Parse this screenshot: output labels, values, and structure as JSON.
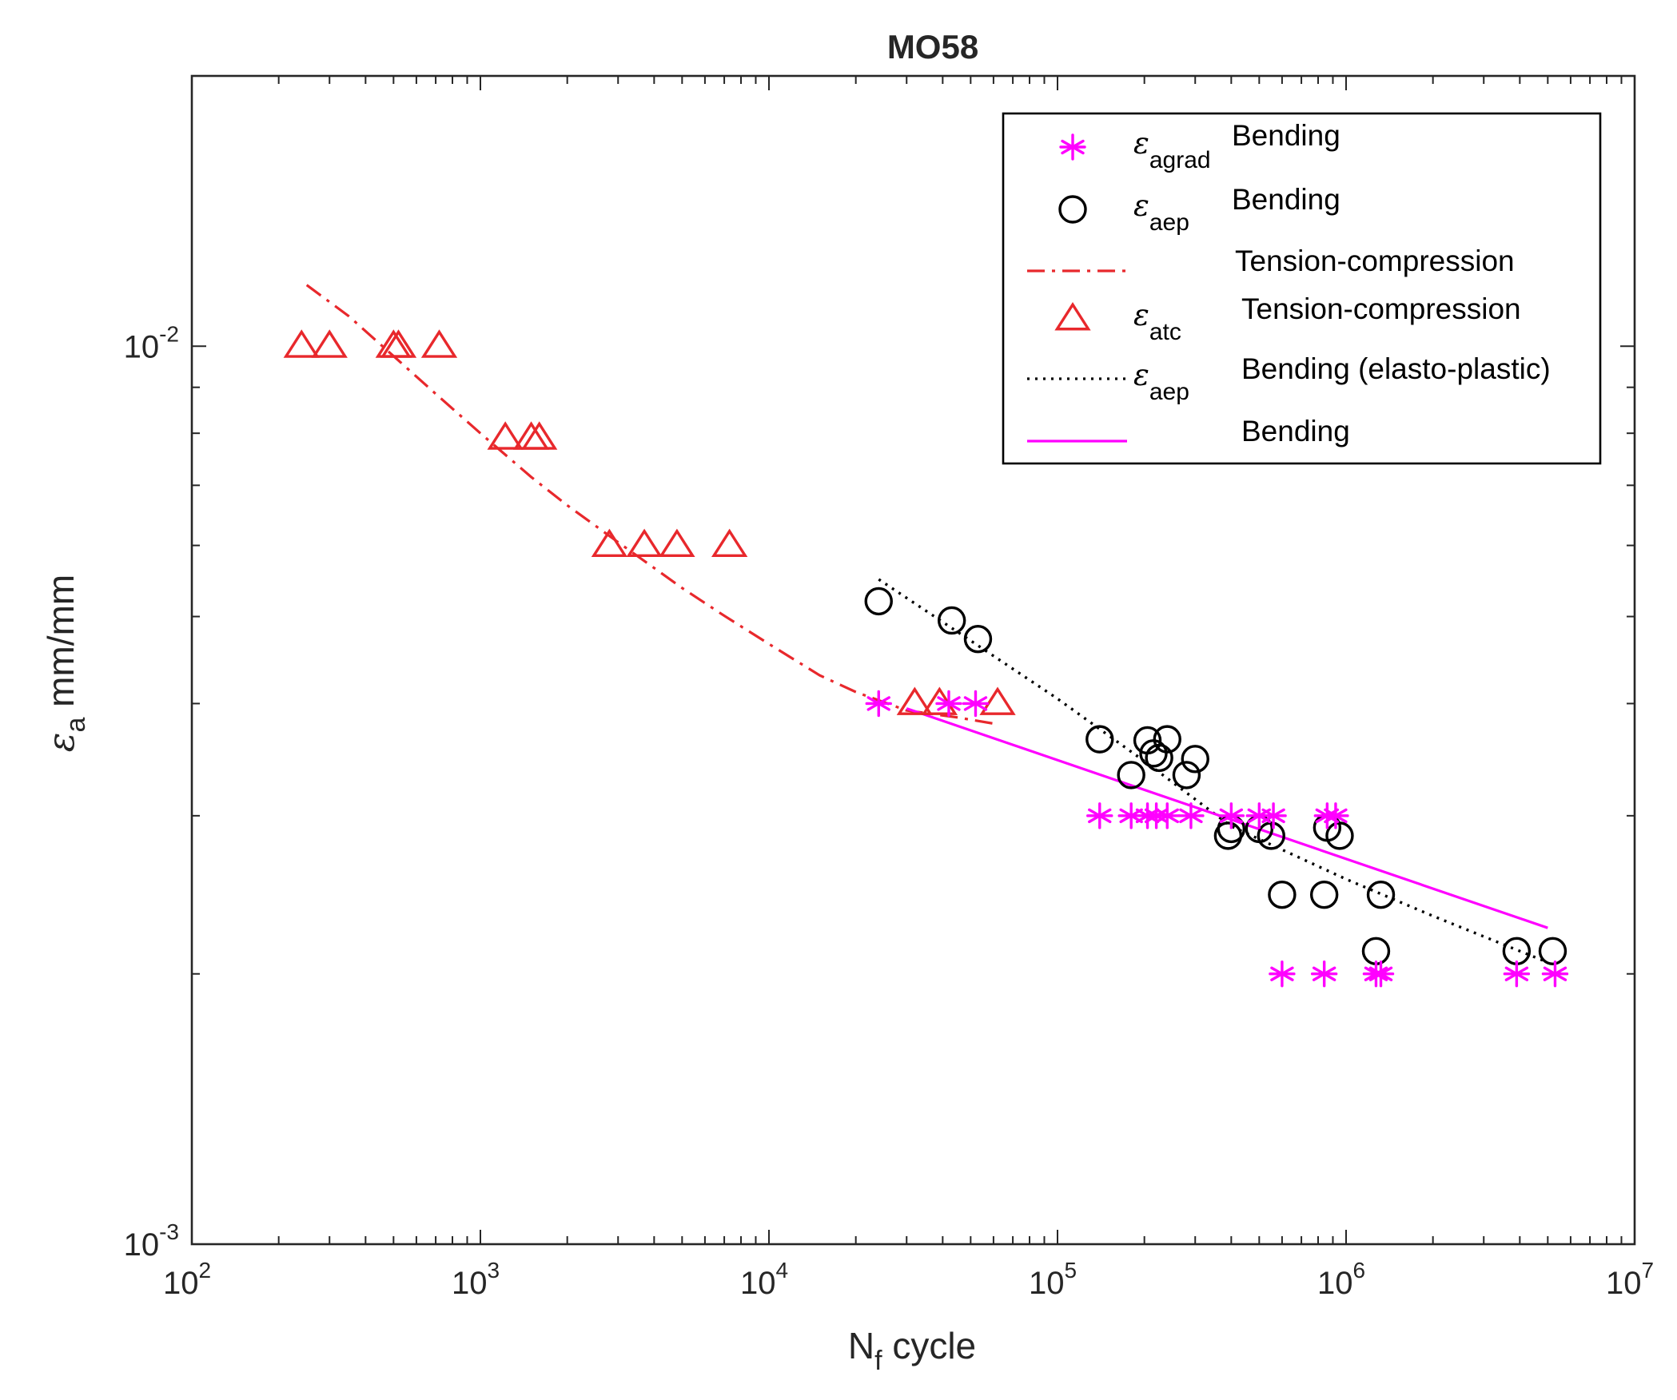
{
  "chart_data": {
    "type": "scatter",
    "title": "MO58",
    "xlabel": {
      "base": "N",
      "sub": "f",
      "rest": " cycle"
    },
    "ylabel": {
      "base": "ε",
      "sub": "a",
      "rest": " mm/mm"
    },
    "x_scale": "log",
    "y_scale": "log",
    "xlim": [
      100,
      10000000
    ],
    "ylim": [
      0.001,
      0.02
    ],
    "x_ticks": [
      {
        "value": 100,
        "base": "10",
        "exp": "2"
      },
      {
        "value": 1000,
        "base": "10",
        "exp": "3"
      },
      {
        "value": 10000,
        "base": "10",
        "exp": "4"
      },
      {
        "value": 100000,
        "base": "10",
        "exp": "5"
      },
      {
        "value": 1000000,
        "base": "10",
        "exp": "6"
      },
      {
        "value": 10000000,
        "base": "10",
        "exp": "7"
      }
    ],
    "y_ticks": [
      {
        "value": 0.001,
        "base": "10",
        "exp": "-3"
      },
      {
        "value": 0.01,
        "base": "10",
        "exp": "-2"
      }
    ],
    "grid": false,
    "legend_position": "top-right",
    "series": [
      {
        "name": "eps_agrad_bending",
        "legend_symbol": "ε",
        "legend_sub": "agrad",
        "legend_text": "Bending",
        "kind": "scatter",
        "marker": "asterisk",
        "color": "#FF00FF",
        "points": [
          [
            24000,
            0.004
          ],
          [
            42000,
            0.004
          ],
          [
            52000,
            0.004
          ],
          [
            140000,
            0.003
          ],
          [
            180000,
            0.003
          ],
          [
            205000,
            0.003
          ],
          [
            220000,
            0.003
          ],
          [
            240000,
            0.003
          ],
          [
            290000,
            0.003
          ],
          [
            400000,
            0.003
          ],
          [
            500000,
            0.003
          ],
          [
            560000,
            0.003
          ],
          [
            860000,
            0.003
          ],
          [
            920000,
            0.003
          ],
          [
            600000,
            0.002
          ],
          [
            840000,
            0.002
          ],
          [
            1270000,
            0.002
          ],
          [
            1320000,
            0.002
          ],
          [
            3900000,
            0.002
          ],
          [
            5300000,
            0.002
          ]
        ]
      },
      {
        "name": "eps_aep_bending",
        "legend_symbol": "ε",
        "legend_sub": "aep",
        "legend_text": "Bending",
        "kind": "scatter",
        "marker": "circle",
        "color": "#000000",
        "points": [
          [
            24000,
            0.0052
          ],
          [
            43000,
            0.00495
          ],
          [
            53000,
            0.00472
          ],
          [
            140000,
            0.00365
          ],
          [
            180000,
            0.00333
          ],
          [
            205000,
            0.00364
          ],
          [
            215000,
            0.00352
          ],
          [
            225000,
            0.00348
          ],
          [
            240000,
            0.00365
          ],
          [
            280000,
            0.00333
          ],
          [
            300000,
            0.00347
          ],
          [
            390000,
            0.00285
          ],
          [
            400000,
            0.0029
          ],
          [
            500000,
            0.0029
          ],
          [
            550000,
            0.00285
          ],
          [
            860000,
            0.00291
          ],
          [
            950000,
            0.00285
          ],
          [
            600000,
            0.00245
          ],
          [
            840000,
            0.00245
          ],
          [
            1320000,
            0.00245
          ],
          [
            1270000,
            0.00212
          ],
          [
            3900000,
            0.00212
          ],
          [
            5200000,
            0.00212
          ]
        ]
      },
      {
        "name": "tension_compression_fit",
        "legend_symbol": "",
        "legend_sub": "",
        "legend_text": "Tension-compression",
        "kind": "line",
        "dash": "dashdot",
        "color": "#E8282C",
        "points": [
          [
            250,
            0.0117
          ],
          [
            350,
            0.0108
          ],
          [
            500,
            0.00975
          ],
          [
            700,
            0.00885
          ],
          [
            1000,
            0.008
          ],
          [
            1500,
            0.00715
          ],
          [
            2000,
            0.00665
          ],
          [
            3000,
            0.00605
          ],
          [
            5000,
            0.00538
          ],
          [
            7000,
            0.00501
          ],
          [
            10000,
            0.00466
          ],
          [
            15000,
            0.0043
          ],
          [
            20000,
            0.00412
          ],
          [
            30000,
            0.00393
          ],
          [
            45000,
            0.00386
          ],
          [
            60000,
            0.0038
          ]
        ]
      },
      {
        "name": "eps_atc_tension_compression",
        "legend_symbol": "ε",
        "legend_sub": "atc",
        "legend_text": "Tension-compression",
        "kind": "scatter",
        "marker": "triangle",
        "color": "#E8282C",
        "points": [
          [
            240,
            0.01
          ],
          [
            300,
            0.01
          ],
          [
            500,
            0.01
          ],
          [
            520,
            0.01
          ],
          [
            720,
            0.01
          ],
          [
            1220,
            0.0079
          ],
          [
            1500,
            0.0079
          ],
          [
            1600,
            0.0079
          ],
          [
            2800,
            0.006
          ],
          [
            3700,
            0.006
          ],
          [
            4800,
            0.006
          ],
          [
            7300,
            0.006
          ],
          [
            32000,
            0.004
          ],
          [
            39000,
            0.004
          ],
          [
            62000,
            0.004
          ]
        ]
      },
      {
        "name": "eps_aep_elasto_plastic_fit",
        "legend_symbol": "ε",
        "legend_sub": "aep",
        "legend_text": "Bending (elasto-plastic)",
        "kind": "line",
        "dash": "dotted",
        "color": "#000000",
        "points": [
          [
            24000,
            0.0055
          ],
          [
            50000,
            0.0047
          ],
          [
            100000,
            0.00405
          ],
          [
            200000,
            0.00345
          ],
          [
            400000,
            0.00292
          ],
          [
            1000000,
            0.00255
          ],
          [
            2000000,
            0.00232
          ],
          [
            5000000,
            0.00206
          ]
        ]
      },
      {
        "name": "bending_fit",
        "legend_symbol": "",
        "legend_sub": "",
        "legend_text": "Bending",
        "kind": "line",
        "dash": "solid",
        "color": "#FF00FF",
        "points": [
          [
            30000,
            0.00395
          ],
          [
            5000000,
            0.00225
          ]
        ]
      }
    ]
  }
}
